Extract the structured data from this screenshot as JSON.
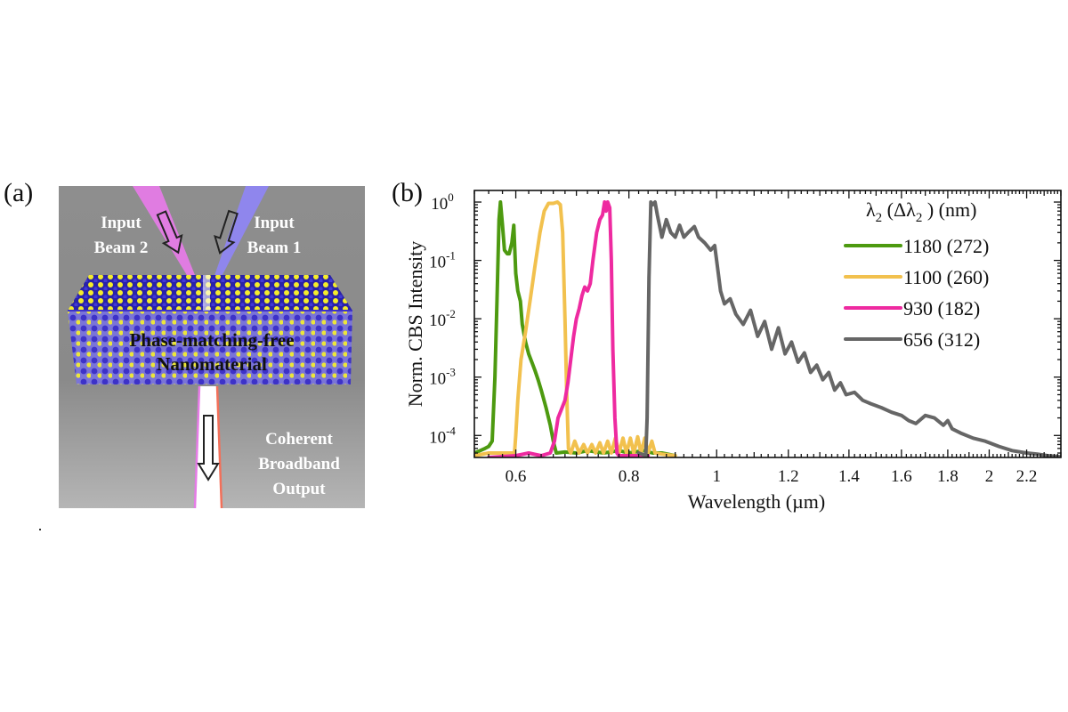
{
  "panels": {
    "a_label": "(a)",
    "b_label": "(b)"
  },
  "schematic": {
    "beam2_line1": "Input",
    "beam2_line2": "Beam 2",
    "beam1_line1": "Input",
    "beam1_line2": "Beam 1",
    "material_line1": "Phase-matching-free",
    "material_line2": "Nanomaterial",
    "output_line1": "Coherent",
    "output_line2": "Broadband",
    "output_line3": "Output",
    "colors": {
      "background": "#8a8a8a",
      "beam2": "#e57be6",
      "beam1": "#8f86f2",
      "atom_yellow": "#f2ea2a",
      "atom_blue": "#3b2fc9"
    }
  },
  "chart_data": {
    "type": "line",
    "title": "",
    "xlabel": "Wavelength (µm)",
    "ylabel": "Norm. CBS Intensity",
    "xscale": "log",
    "yscale": "log",
    "xlim": [
      0.54,
      2.4
    ],
    "ylim": [
      4.2e-05,
      1.58
    ],
    "grid": false,
    "legend_position": "top-right",
    "legend_title_main": "λ",
    "legend_title_sub1": "2",
    "legend_title_mid": " (Δλ",
    "legend_title_sub2": "2",
    "legend_title_end": " ) (nm)",
    "x_ticks": [
      {
        "value": 0.6,
        "label": "0.6"
      },
      {
        "value": 0.8,
        "label": "0.8"
      },
      {
        "value": 1.0,
        "label": "1"
      },
      {
        "value": 1.2,
        "label": "1.2"
      },
      {
        "value": 1.4,
        "label": "1.4"
      },
      {
        "value": 1.6,
        "label": "1.6"
      },
      {
        "value": 1.8,
        "label": "1.8"
      },
      {
        "value": 2.0,
        "label": "2"
      },
      {
        "value": 2.2,
        "label": "2.2"
      }
    ],
    "y_ticks": [
      {
        "value": 1,
        "base": "10",
        "exp": "0"
      },
      {
        "value": 0.1,
        "base": "10",
        "exp": "-1"
      },
      {
        "value": 0.01,
        "base": "10",
        "exp": "-2"
      },
      {
        "value": 0.001,
        "base": "10",
        "exp": "-3"
      },
      {
        "value": 0.0001,
        "base": "10",
        "exp": "-4"
      }
    ],
    "series": [
      {
        "name": "1180 (272)",
        "color": "#4d9a10",
        "x": [
          0.54,
          0.548,
          0.555,
          0.56,
          0.565,
          0.569,
          0.572,
          0.575,
          0.577,
          0.58,
          0.583,
          0.587,
          0.59,
          0.594,
          0.597,
          0.6,
          0.603,
          0.607,
          0.61,
          0.615,
          0.62,
          0.625,
          0.63,
          0.635,
          0.64,
          0.648,
          0.655,
          0.66,
          0.665,
          0.68,
          0.7,
          0.72,
          0.75,
          0.78,
          0.8,
          0.83,
          0.85,
          0.87,
          0.9
        ],
        "y": [
          5e-05,
          5.5e-05,
          6e-05,
          6.5e-05,
          8e-05,
          0.001,
          0.02,
          0.5,
          1.0,
          0.4,
          0.15,
          0.13,
          0.13,
          0.2,
          0.4,
          0.06,
          0.03,
          0.02,
          0.008,
          0.004,
          0.0025,
          0.0018,
          0.0013,
          0.0009,
          0.0006,
          0.0003,
          0.00015,
          8e-05,
          5e-05,
          5.2e-05,
          5e-05,
          5.5e-05,
          5e-05,
          5.5e-05,
          5e-05,
          5.5e-05,
          5e-05,
          5e-05,
          4.5e-05
        ]
      },
      {
        "name": "1100 (260)",
        "color": "#f2c14e",
        "x": [
          0.54,
          0.56,
          0.58,
          0.598,
          0.6,
          0.603,
          0.608,
          0.615,
          0.622,
          0.63,
          0.638,
          0.645,
          0.652,
          0.66,
          0.667,
          0.672,
          0.676,
          0.68,
          0.683,
          0.686,
          0.69,
          0.697,
          0.705,
          0.713,
          0.72,
          0.728,
          0.735,
          0.743,
          0.75,
          0.758,
          0.765,
          0.773,
          0.78,
          0.788,
          0.795,
          0.803,
          0.81,
          0.818,
          0.825,
          0.833,
          0.84,
          0.848,
          0.855,
          0.87,
          0.9
        ],
        "y": [
          4.5e-05,
          5e-05,
          5e-05,
          5e-05,
          0.0001,
          0.0004,
          0.002,
          0.006,
          0.02,
          0.08,
          0.3,
          0.7,
          0.95,
          0.95,
          1.0,
          0.9,
          0.3,
          0.01,
          0.0005,
          6e-05,
          5e-05,
          8e-05,
          5e-05,
          7e-05,
          5e-05,
          7e-05,
          5e-05,
          7.5e-05,
          5e-05,
          8e-05,
          5e-05,
          9e-05,
          5e-05,
          9e-05,
          5e-05,
          9e-05,
          5e-05,
          9.5e-05,
          5e-05,
          9e-05,
          5e-05,
          8e-05,
          5e-05,
          4.8e-05,
          4.5e-05
        ]
      },
      {
        "name": "930 (182)",
        "color": "#ee2aa0",
        "x": [
          0.56,
          0.6,
          0.62,
          0.64,
          0.655,
          0.662,
          0.668,
          0.675,
          0.68,
          0.685,
          0.69,
          0.695,
          0.7,
          0.705,
          0.71,
          0.715,
          0.72,
          0.725,
          0.73,
          0.737,
          0.743,
          0.748,
          0.752,
          0.755,
          0.758,
          0.762,
          0.765,
          0.768,
          0.772,
          0.776,
          0.78,
          0.8,
          0.84
        ],
        "y": [
          4.2e-05,
          4.5e-05,
          5e-05,
          4.5e-05,
          5e-05,
          8e-05,
          0.0002,
          0.0003,
          0.0004,
          0.0008,
          0.002,
          0.005,
          0.01,
          0.015,
          0.025,
          0.035,
          0.03,
          0.04,
          0.1,
          0.3,
          0.5,
          0.6,
          1.0,
          0.7,
          1.0,
          0.8,
          0.1,
          0.003,
          0.0002,
          5e-05,
          4.5e-05,
          4.5e-05,
          4.5e-05
        ]
      },
      {
        "name": "656 (312)",
        "color": "#666666",
        "x": [
          0.82,
          0.835,
          0.838,
          0.842,
          0.846,
          0.85,
          0.855,
          0.86,
          0.87,
          0.88,
          0.89,
          0.9,
          0.91,
          0.92,
          0.93,
          0.945,
          0.955,
          0.97,
          0.985,
          0.995,
          1.0,
          1.01,
          1.02,
          1.035,
          1.05,
          1.07,
          1.09,
          1.11,
          1.13,
          1.15,
          1.17,
          1.19,
          1.21,
          1.23,
          1.25,
          1.27,
          1.29,
          1.31,
          1.33,
          1.35,
          1.37,
          1.39,
          1.42,
          1.45,
          1.48,
          1.52,
          1.56,
          1.6,
          1.63,
          1.66,
          1.7,
          1.74,
          1.78,
          1.8,
          1.82,
          1.86,
          1.92,
          1.98,
          2.05,
          2.12,
          2.2,
          2.26,
          2.32,
          2.4
        ],
        "y": [
          5e-05,
          4.5e-05,
          0.0002,
          0.05,
          1.0,
          0.9,
          1.0,
          0.6,
          0.25,
          0.5,
          0.3,
          0.25,
          0.4,
          0.25,
          0.3,
          0.38,
          0.25,
          0.2,
          0.15,
          0.18,
          0.1,
          0.03,
          0.018,
          0.022,
          0.012,
          0.008,
          0.014,
          0.005,
          0.009,
          0.003,
          0.007,
          0.0025,
          0.004,
          0.0018,
          0.0026,
          0.0012,
          0.0016,
          0.0009,
          0.0012,
          0.0006,
          0.0008,
          0.0005,
          0.00055,
          0.0004,
          0.00035,
          0.0003,
          0.00025,
          0.00022,
          0.00018,
          0.00016,
          0.00022,
          0.0002,
          0.00015,
          0.00018,
          0.00013,
          0.00011,
          9e-05,
          8e-05,
          6.5e-05,
          5.5e-05,
          5e-05,
          4.8e-05,
          4.5e-05,
          4.3e-05
        ]
      }
    ]
  }
}
